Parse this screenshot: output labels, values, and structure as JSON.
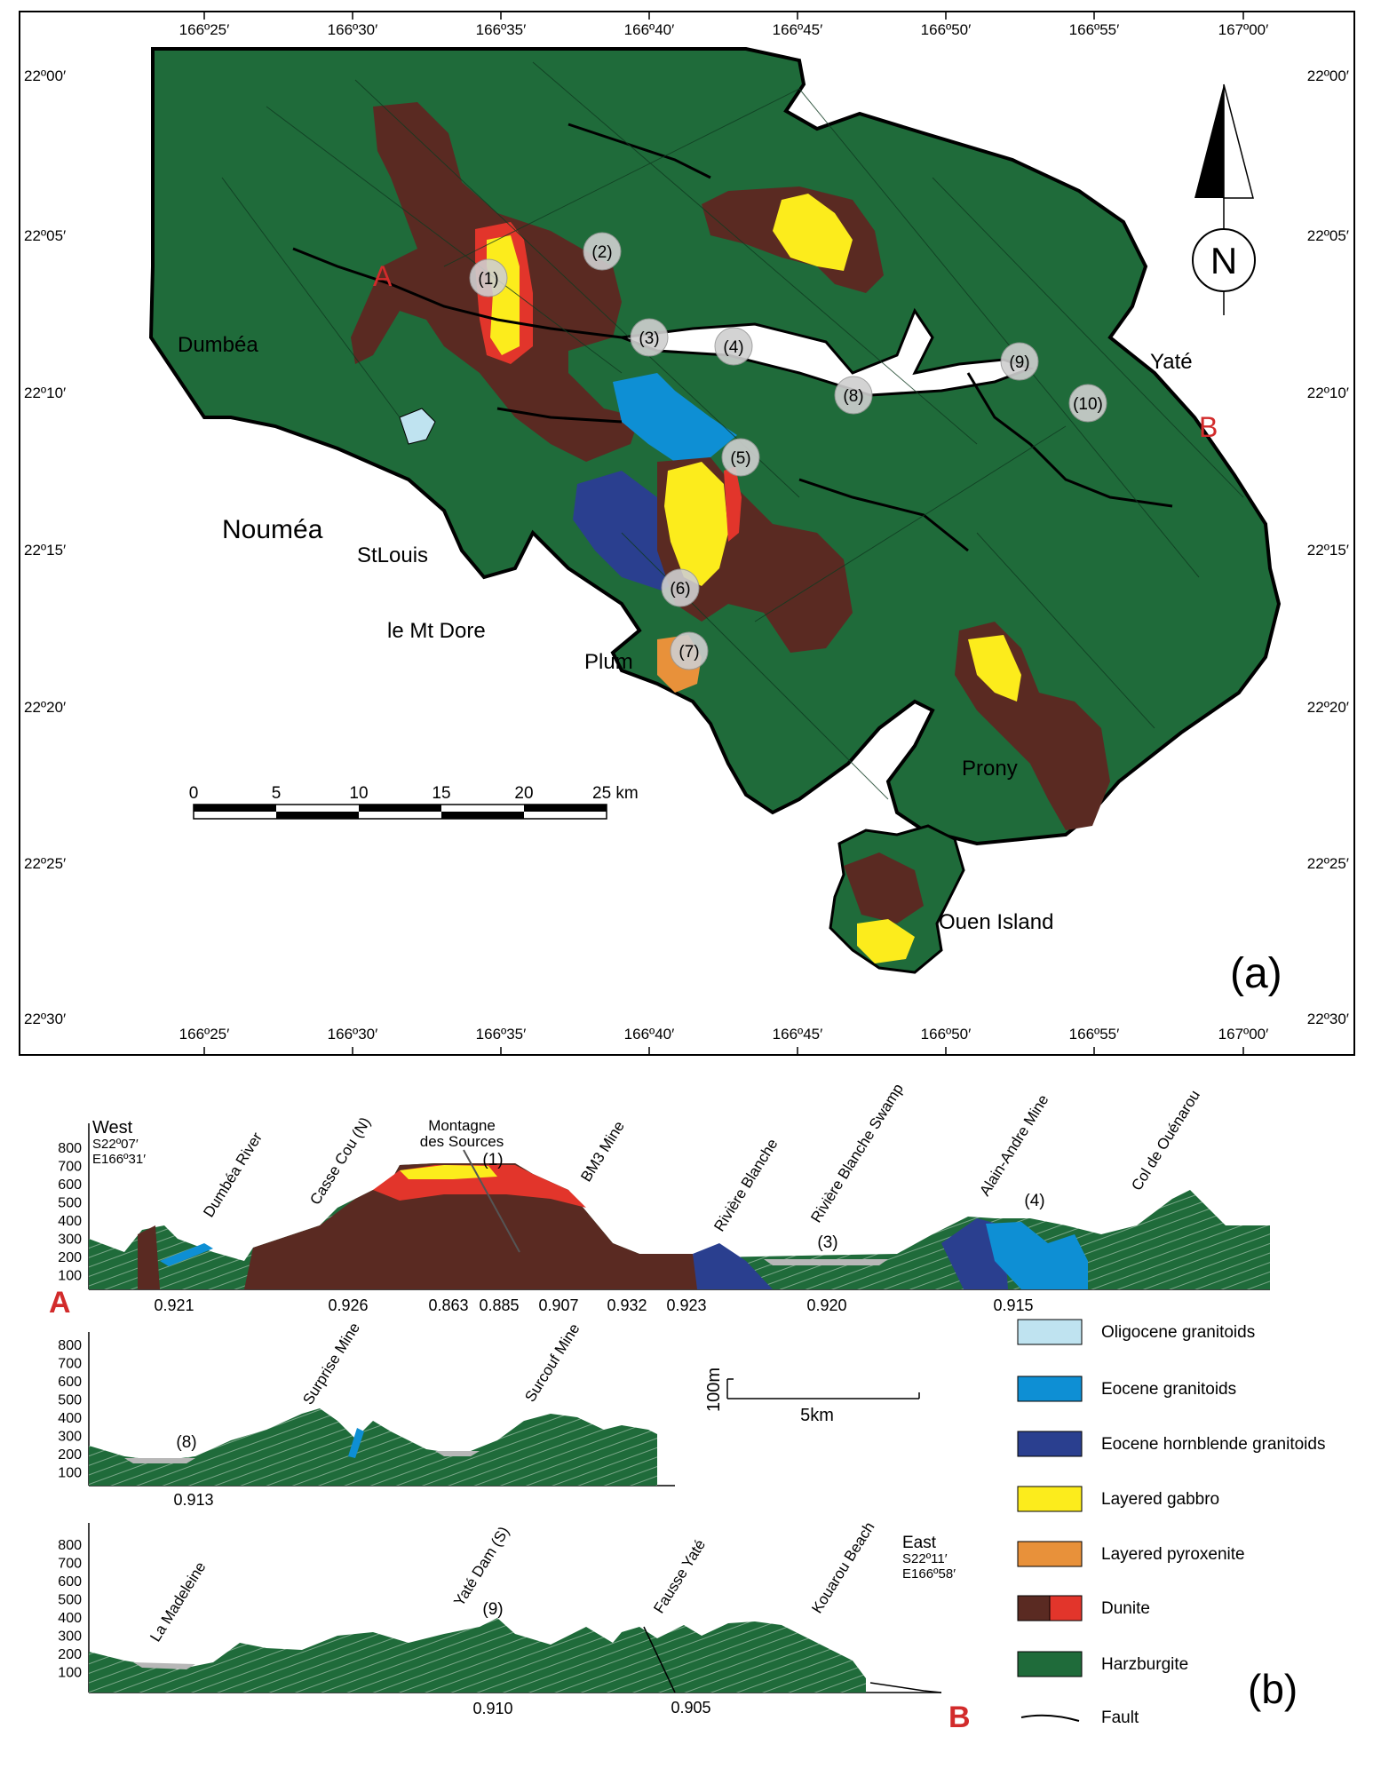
{
  "colors": {
    "harzburgite": "#1f6b3a",
    "dunite_dark": "#5a2a22",
    "dunite_red": "#e2352b",
    "layered_gabbro": "#fcec1c",
    "layered_pyroxenite": "#e8913a",
    "eocene_hornblende": "#2a3f8f",
    "eocene_granitoids": "#0e8fd4",
    "oligocene_granitoids": "#bfe3f0",
    "sea": "#ffffff",
    "label_red": "#d22b2b"
  },
  "map": {
    "panel_label": "(a)",
    "lon_ticks": [
      "166º25′",
      "166º30′",
      "166º35′",
      "166º40′",
      "166º45′",
      "166º50′",
      "166º55′",
      "167º00′"
    ],
    "lat_ticks_left": [
      "22º00′",
      "22º05′",
      "22º10′",
      "22º15′",
      "22º20′",
      "22º25′",
      "22º30′"
    ],
    "lat_ticks_right": [
      "22º00′",
      "22º05′",
      "22º10′",
      "22º15′",
      "22º20′",
      "22º25′",
      "22º30′"
    ],
    "places": {
      "dumbea": "Dumbéa",
      "noumea": "Nouméa",
      "stlouis": "StLouis",
      "mtdore": "le Mt Dore",
      "plum": "Plum",
      "yate": "Yaté",
      "prony": "Prony",
      "ouen": "Ouen Island"
    },
    "section_a": "A",
    "section_b": "B",
    "north": "N",
    "sites": [
      "(1)",
      "(2)",
      "(3)",
      "(4)",
      "(5)",
      "(6)",
      "(7)",
      "(8)",
      "(9)",
      "(10)"
    ],
    "scale": {
      "labels": [
        "0",
        "5",
        "10",
        "15",
        "20",
        "25 km"
      ]
    }
  },
  "section": {
    "panel_label": "(b)",
    "west_title": "West",
    "west_lat": "S22º07′",
    "west_lon": "E166º31′",
    "east_title": "East",
    "east_lat": "S22º11′",
    "east_lon": "E166º58′",
    "elev_ticks": [
      "800",
      "700",
      "600",
      "500",
      "400",
      "300",
      "200",
      "100"
    ],
    "profile1_labels": [
      "Dumbéa River",
      "Casse Cou (N)",
      "BM3 Mine",
      "Rivière Blanche",
      "Rivière Blanche Swamp",
      "Alain-Andre Mine",
      "Col de Ouénarou"
    ],
    "montagne_l1": "Montagne",
    "montagne_l2": "des Sources",
    "p1_site1": "(1)",
    "p1_site3": "(3)",
    "p1_site4": "(4)",
    "profile1_values": [
      "0.921",
      "0.926",
      "0.863",
      "0.885",
      "0.907",
      "0.932",
      "0.923",
      "0.920",
      "0.915"
    ],
    "profile2_labels": [
      "Surprise Mine",
      "Surcouf Mine"
    ],
    "p2_site8": "(8)",
    "profile2_values": [
      "0.913"
    ],
    "profile3_labels": [
      "La Madeleine",
      "Yaté Dam (S)",
      "Fausse Yaté",
      "Kouarou Beach"
    ],
    "p3_site9": "(9)",
    "profile3_values": [
      "0.910",
      "0.905"
    ],
    "vscale": "100m",
    "hscale": "5km",
    "legend": [
      "Oligocene granitoids",
      "Eocene granitoids",
      "Eocene hornblende granitoids",
      "Layered gabbro",
      "Layered pyroxenite",
      "Dunite",
      "Harzburgite",
      "Fault"
    ]
  }
}
